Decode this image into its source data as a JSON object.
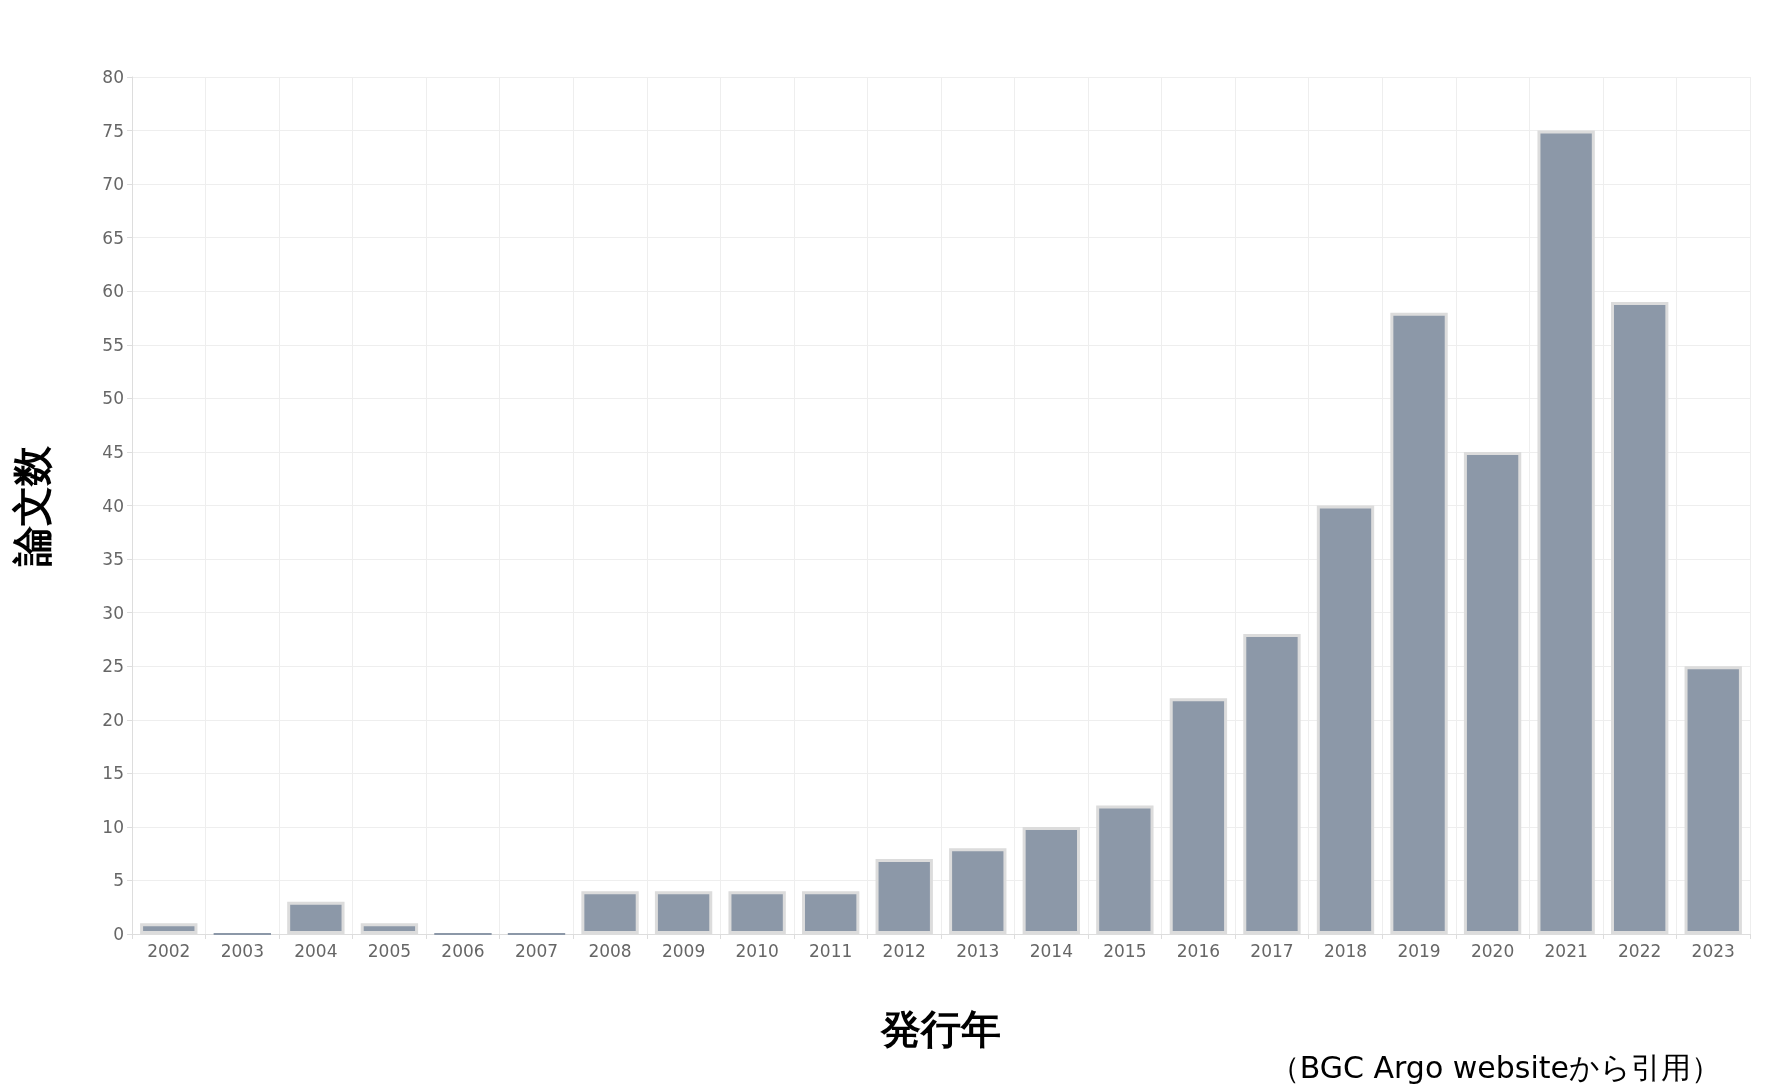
{
  "chart_data": {
    "type": "bar",
    "xlabel": "発行年",
    "ylabel": "論文数",
    "categories": [
      "2002",
      "2003",
      "2004",
      "2005",
      "2006",
      "2007",
      "2008",
      "2009",
      "2010",
      "2011",
      "2012",
      "2013",
      "2014",
      "2015",
      "2016",
      "2017",
      "2018",
      "2019",
      "2020",
      "2021",
      "2022",
      "2023"
    ],
    "values": [
      1,
      0,
      3,
      1,
      0,
      0,
      4,
      4,
      4,
      4,
      7,
      8,
      10,
      12,
      22,
      28,
      40,
      58,
      45,
      75,
      59,
      25
    ],
    "color": "#8c98a8",
    "ylim": [
      0,
      80
    ],
    "yticks": [
      0,
      5,
      10,
      15,
      20,
      25,
      30,
      35,
      40,
      45,
      50,
      55,
      60,
      65,
      70,
      75,
      80
    ],
    "grid": true,
    "annotations": [
      "（BGC Argo websiteから引用）"
    ]
  }
}
